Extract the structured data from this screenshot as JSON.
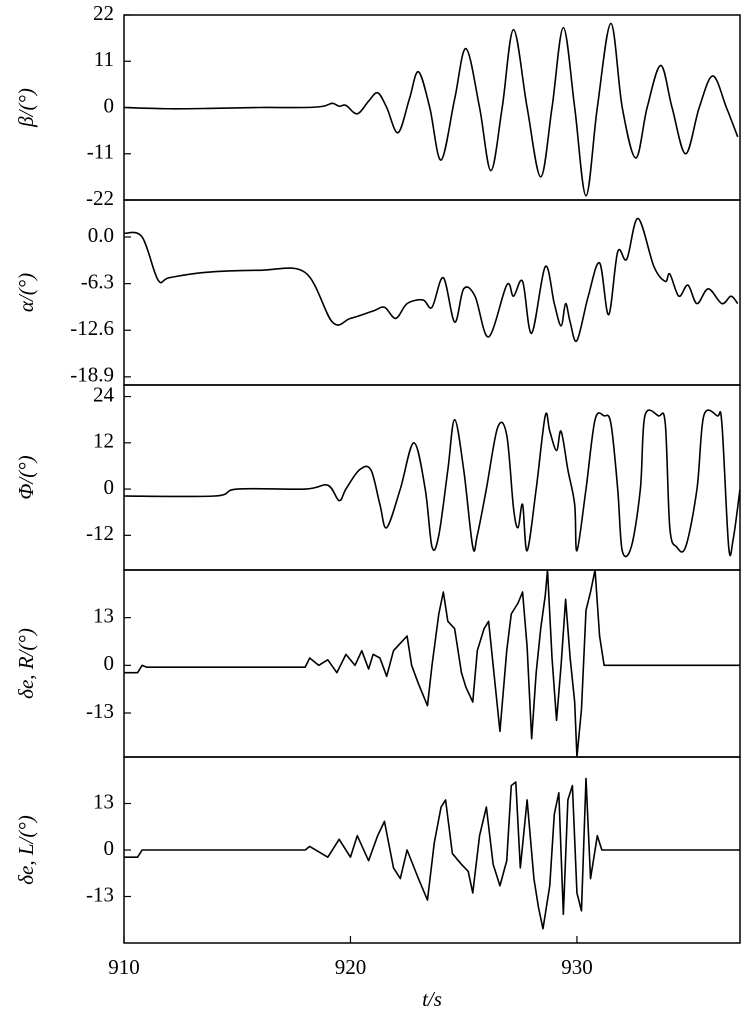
{
  "chart_data": [
    {
      "type": "line",
      "ylabel": "β/(°)",
      "xlim": [
        910,
        937.2
      ],
      "ylim": [
        -22,
        22
      ],
      "yticks": [
        22,
        11,
        0,
        -11,
        -22
      ],
      "series": [
        {
          "name": "β",
          "color": "#000000",
          "x": [
            910,
            912,
            914,
            916,
            918,
            918.8,
            919.2,
            919.5,
            919.8,
            920.3,
            920.8,
            921.2,
            921.6,
            922.1,
            922.6,
            923.0,
            923.5,
            924.0,
            924.6,
            925.1,
            925.7,
            926.2,
            926.7,
            927.2,
            927.8,
            928.4,
            928.9,
            929.4,
            929.9,
            930.4,
            930.9,
            931.5,
            932.0,
            932.6,
            933.1,
            933.7,
            934.2,
            934.8,
            935.4,
            936.0,
            936.6,
            937.1
          ],
          "values": [
            0,
            -0.3,
            -0.2,
            0,
            0,
            0.3,
            1,
            0.3,
            0.5,
            -1.5,
            1.5,
            3.5,
            0,
            -6,
            2,
            8.5,
            0,
            -12.5,
            2,
            14,
            0,
            -15,
            0,
            18.5,
            0,
            -16.5,
            0,
            19,
            0,
            -21,
            0,
            20,
            0,
            -12,
            0,
            10,
            0,
            -11,
            0,
            7.5,
            0,
            -7
          ]
        }
      ]
    },
    {
      "type": "line",
      "ylabel": "α/(°)",
      "xlim": [
        910,
        937.2
      ],
      "ylim": [
        -20,
        5
      ],
      "yticks": [
        {
          "value": 0,
          "label": "0.0"
        },
        -6.3,
        -12.6,
        -18.9
      ],
      "series": [
        {
          "name": "α",
          "color": "#000000",
          "x": [
            910,
            910.8,
            911.5,
            912,
            913.5,
            916,
            918,
            919.2,
            920,
            921,
            921.5,
            922,
            922.5,
            923.2,
            923.6,
            924.1,
            924.6,
            925,
            925.5,
            926.1,
            926.9,
            927.2,
            927.6,
            928.0,
            928.6,
            929.0,
            929.3,
            929.5,
            929.7,
            930.0,
            930.5,
            931.0,
            931.4,
            931.8,
            932.2,
            932.7,
            933.4,
            933.9,
            934.1,
            934.5,
            934.9,
            935.3,
            935.8,
            936.4,
            936.8,
            937.1
          ],
          "values": [
            0.5,
            0,
            -5.8,
            -5.5,
            -4.8,
            -4.5,
            -4.8,
            -11.5,
            -11,
            -10,
            -9.5,
            -11,
            -9,
            -8.5,
            -9.5,
            -5.5,
            -11.5,
            -7,
            -8,
            -13.5,
            -6.5,
            -8,
            -6,
            -13,
            -4,
            -9,
            -12,
            -9,
            -11.5,
            -14,
            -8,
            -3.5,
            -10.5,
            -2,
            -3,
            2.5,
            -4,
            -6,
            -5,
            -8,
            -6.5,
            -9,
            -7,
            -9,
            -8,
            -9
          ]
        }
      ]
    },
    {
      "type": "line",
      "ylabel": "Φ/(°)",
      "xlim": [
        910,
        937.2
      ],
      "ylim": [
        -21,
        27
      ],
      "yticks": [
        24,
        12,
        0,
        -12
      ],
      "series": [
        {
          "name": "Φ",
          "color": "#000000",
          "x": [
            910,
            914,
            915,
            918,
            919,
            919.5,
            919.8,
            920.4,
            920.9,
            921.3,
            921.6,
            922.2,
            922.8,
            923.3,
            923.6,
            923.9,
            924.3,
            924.6,
            925.0,
            925.4,
            925.6,
            926.0,
            926.5,
            926.9,
            927.2,
            927.4,
            927.6,
            927.8,
            928.2,
            928.6,
            928.8,
            929.1,
            929.3,
            929.6,
            929.9,
            930.0,
            930.4,
            930.8,
            931.2,
            931.5,
            931.8,
            932.0,
            932.4,
            932.8,
            933.0,
            933.6,
            933.9,
            934.1,
            934.4,
            934.8,
            935.3,
            935.6,
            936.2,
            936.4,
            936.7,
            936.9,
            937.2
          ],
          "values": [
            -1.8,
            -1.8,
            0,
            0,
            1,
            -3,
            0,
            5,
            5,
            -4,
            -10,
            0,
            12,
            0,
            -15,
            -12,
            5,
            18,
            5,
            -15,
            -12,
            0,
            16,
            14,
            -5,
            -10,
            -4,
            -16,
            0,
            19,
            15,
            10,
            15,
            5,
            -4,
            -16,
            0,
            18,
            19,
            17,
            0,
            -16,
            -15,
            0,
            19,
            19,
            17,
            -10,
            -15,
            -15,
            0,
            19,
            19,
            17,
            -15,
            -13,
            0
          ]
        }
      ]
    },
    {
      "type": "line",
      "ylabel": "δe, R/(°)",
      "xlim": [
        910,
        937.2
      ],
      "ylim": [
        -25,
        26
      ],
      "yticks": [
        13,
        0,
        -13
      ],
      "series": [
        {
          "name": "δe,R",
          "color": "#000000",
          "x": [
            910,
            910.6,
            910.8,
            911,
            918,
            918.2,
            918.6,
            919,
            919.4,
            919.8,
            920.2,
            920.5,
            920.8,
            921,
            921.3,
            921.6,
            921.9,
            922.2,
            922.5,
            922.7,
            923,
            923.4,
            923.6,
            923.9,
            924.1,
            924.3,
            924.6,
            924.9,
            925.1,
            925.4,
            925.6,
            925.9,
            926.1,
            926.4,
            926.6,
            926.9,
            927.1,
            927.4,
            927.6,
            927.8,
            928,
            928.2,
            928.4,
            928.6,
            928.7,
            928.9,
            929.1,
            929.3,
            929.5,
            929.7,
            929.9,
            930.0,
            930.2,
            930.4,
            930.6,
            930.8,
            931.0,
            931.2,
            931.4,
            937.2
          ],
          "values": [
            -2,
            -2,
            0,
            -0.5,
            -0.5,
            2,
            0,
            1.5,
            -2,
            3,
            0,
            4,
            -1,
            3,
            2,
            -3,
            4,
            6,
            8,
            0,
            -5,
            -11,
            0,
            14,
            20,
            12,
            10,
            -2,
            -6,
            -10,
            4,
            10,
            12,
            -6,
            -18,
            4,
            14,
            17,
            20,
            5,
            -20,
            -2,
            10,
            19,
            26,
            2,
            -15,
            0,
            18,
            2,
            -10,
            -25,
            -12,
            15,
            20,
            26,
            8,
            0,
            0,
            0
          ]
        }
      ]
    },
    {
      "type": "line",
      "ylabel": "δe, L/(°)",
      "xlabel": "t/s",
      "xlim": [
        910,
        937.2
      ],
      "xticks": [
        910,
        920,
        930
      ],
      "ylim": [
        -26,
        26
      ],
      "yticks": [
        13,
        0,
        -13
      ],
      "series": [
        {
          "name": "δe,L",
          "color": "#000000",
          "x": [
            910,
            910.6,
            910.8,
            918,
            918.2,
            919,
            919.5,
            920,
            920.3,
            920.8,
            921.2,
            921.5,
            921.9,
            922.2,
            922.5,
            923,
            923.4,
            923.7,
            924,
            924.2,
            924.5,
            924.9,
            925.2,
            925.4,
            925.7,
            926,
            926.3,
            926.6,
            926.9,
            927.1,
            927.3,
            927.5,
            927.8,
            928.1,
            928.3,
            928.5,
            928.8,
            929,
            929.2,
            929.4,
            929.6,
            929.8,
            930,
            930.2,
            930.4,
            930.6,
            930.9,
            931,
            931.1,
            937.2
          ],
          "values": [
            -2,
            -2,
            0,
            0,
            1,
            -2,
            3,
            -2,
            4,
            -3,
            4,
            8,
            -5,
            -8,
            0,
            -8,
            -14,
            2,
            12,
            14,
            -1,
            -4,
            -6,
            -12,
            4,
            12,
            -4,
            -10,
            -3,
            18,
            19,
            -5,
            14,
            -8,
            -16,
            -22,
            -10,
            10,
            16,
            -18,
            14,
            18,
            -12,
            -17,
            20,
            -8,
            4,
            2,
            0,
            0
          ]
        }
      ]
    }
  ]
}
